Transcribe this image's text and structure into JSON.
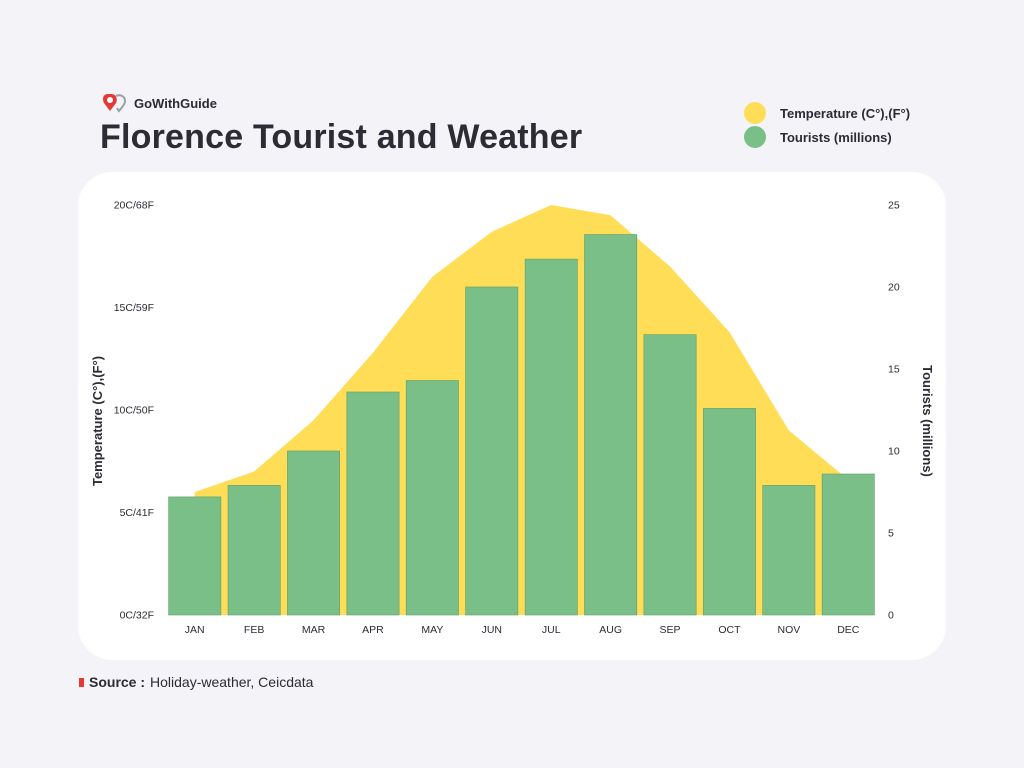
{
  "brand": {
    "name": "GoWithGuide"
  },
  "title": "Florence Tourist and Weather",
  "legend": [
    {
      "label": "Temperature (C°),(F°)",
      "color": "#ffdd57"
    },
    {
      "label": "Tourists (millions)",
      "color": "#7abf88"
    }
  ],
  "source": {
    "label": "Source :",
    "text": "Holiday-weather, Ceicdata"
  },
  "chart_data": {
    "type": "bar",
    "categories": [
      "JAN",
      "FEB",
      "MAR",
      "APR",
      "MAY",
      "JUN",
      "JUL",
      "AUG",
      "SEP",
      "OCT",
      "NOV",
      "DEC"
    ],
    "series": [
      {
        "name": "Tourists (millions)",
        "type": "bar",
        "axis": "right",
        "color": "#7abf88",
        "values": [
          7.2,
          7.9,
          10.0,
          13.6,
          14.3,
          20.0,
          21.7,
          23.2,
          17.1,
          12.6,
          7.9,
          8.6
        ]
      },
      {
        "name": "Temperature (C°),(F°)",
        "type": "area",
        "axis": "left",
        "color": "#ffdd57",
        "values": [
          6.0,
          7.0,
          9.5,
          12.8,
          16.5,
          18.7,
          20.0,
          19.5,
          17.0,
          13.8,
          9.0,
          6.6
        ]
      }
    ],
    "y_left": {
      "label": "Temperature (C°),(F°)",
      "range": [
        0,
        20
      ],
      "ticks": [
        {
          "value": 0,
          "label": "0C/32F"
        },
        {
          "value": 5,
          "label": "5C/41F"
        },
        {
          "value": 10,
          "label": "10C/50F"
        },
        {
          "value": 15,
          "label": "15C/59F"
        },
        {
          "value": 20,
          "label": "20C/68F"
        }
      ]
    },
    "y_right": {
      "label": "Tourists (millions)",
      "range": [
        0,
        25
      ],
      "ticks": [
        {
          "value": 0,
          "label": "0"
        },
        {
          "value": 5,
          "label": "5"
        },
        {
          "value": 10,
          "label": "10"
        },
        {
          "value": 15,
          "label": "15"
        },
        {
          "value": 20,
          "label": "20"
        },
        {
          "value": 25,
          "label": "25"
        }
      ]
    },
    "grid": false,
    "legend_position": "top-right"
  }
}
